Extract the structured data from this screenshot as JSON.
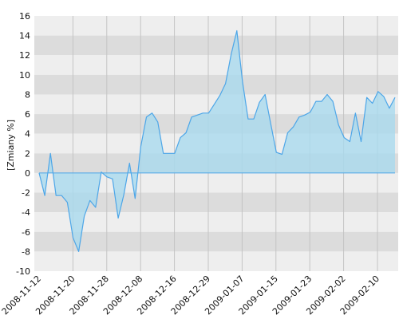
{
  "chart_data": {
    "type": "area",
    "ylabel": "[Zmiany %]",
    "ylim": [
      -10,
      16
    ],
    "y_ticks": [
      "-10",
      "-8",
      "-6",
      "-4",
      "-2",
      "0",
      "2",
      "4",
      "6",
      "8",
      "10",
      "12",
      "14",
      "16"
    ],
    "x_tick_labels": [
      "2008-11-12",
      "2008-11-20",
      "2008-11-28",
      "2008-12-08",
      "2008-12-16",
      "2008-12-29",
      "2009-01-07",
      "2009-01-15",
      "2009-01-23",
      "2009-02-02",
      "2009-02-10"
    ],
    "grid": "horizontal bands and vertical lines",
    "series": [
      {
        "color": "#4da6e8",
        "fill_color": "#a9d9ee",
        "values": [
          0,
          -2.3,
          2.0,
          -2.3,
          -2.3,
          -3.0,
          -6.6,
          -8.0,
          -4.4,
          -2.8,
          -3.5,
          0.1,
          -0.4,
          -0.6,
          -4.6,
          -2.2,
          1.0,
          -2.6,
          2.7,
          5.7,
          6.1,
          5.2,
          2.0,
          2.0,
          2.0,
          3.6,
          4.1,
          5.7,
          5.9,
          6.1,
          6.1,
          7.0,
          7.9,
          9.1,
          12.1,
          14.5,
          9.3,
          5.5,
          5.5,
          7.2,
          8.0,
          5.0,
          2.1,
          1.9,
          4.1,
          4.7,
          5.7,
          5.9,
          6.2,
          7.3,
          7.3,
          8.0,
          7.3,
          4.9,
          3.6,
          3.2,
          6.1,
          3.2,
          7.7,
          7.1,
          8.3,
          7.8,
          6.6,
          7.7
        ]
      }
    ]
  }
}
